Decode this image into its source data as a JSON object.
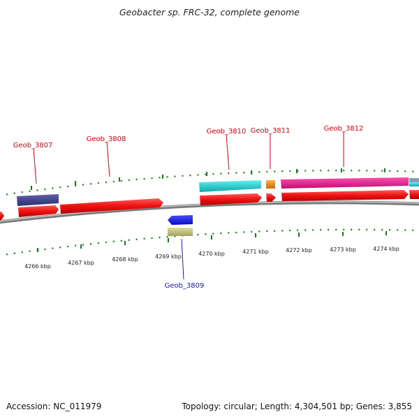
{
  "title": "Geobacter sp. FRC-32, complete genome",
  "footer": {
    "accession": "Accession: NC_011979",
    "topology": "Topology: circular; Length: 4,304,501 bp; Genes: 3,855"
  },
  "scale_labels": [
    "4266 kbp",
    "4267 kbp",
    "4268 kbp",
    "4269 kbp",
    "4270 kbp",
    "4271 kbp",
    "4272 kbp",
    "4273 kbp",
    "4274 kbp"
  ],
  "gene_labels": [
    "Geob_3807",
    "Geob_3808",
    "Geob_3809",
    "Geob_3810",
    "Geob_3811",
    "Geob_3812"
  ],
  "colors": {
    "cds": "#ee1111",
    "label_top": "#e0000f",
    "label_bottom": "#1a1aa8",
    "tick": "#1b7a1b",
    "backbone": "#7a7a7a",
    "teal": "#1cc8cc",
    "magenta": "#e8168f",
    "orange": "#f08a10",
    "navy": "#3f3f8c",
    "blue": "#1a1ae8",
    "khaki": "#c2c27a"
  }
}
